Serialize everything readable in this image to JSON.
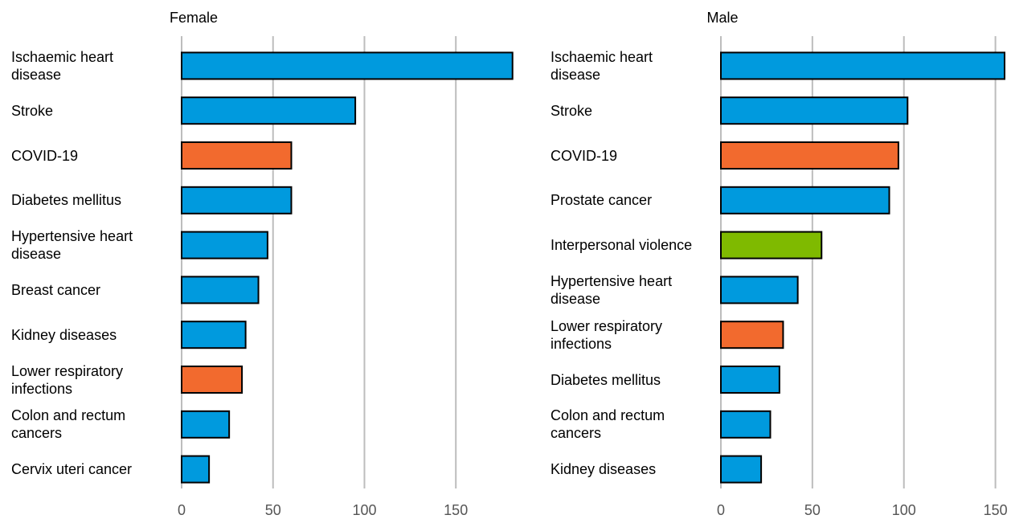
{
  "chart_data": [
    {
      "type": "bar",
      "orientation": "horizontal",
      "title": "Female",
      "categories": [
        "Ischaemic heart disease",
        "Stroke",
        "COVID-19",
        "Diabetes mellitus",
        "Hypertensive heart disease",
        "Breast cancer",
        "Kidney diseases",
        "Lower respiratory infections",
        "Colon and rectum cancers",
        "Cervix uteri cancer"
      ],
      "values": [
        181,
        95,
        60,
        60,
        47,
        42,
        35,
        33,
        26,
        15
      ],
      "colors": [
        "#009ade",
        "#009ade",
        "#f26a2e",
        "#009ade",
        "#009ade",
        "#009ade",
        "#009ade",
        "#f26a2e",
        "#009ade",
        "#009ade"
      ],
      "xlim": [
        0,
        182
      ],
      "xticks": [
        0,
        50,
        100,
        150
      ],
      "grid": true
    },
    {
      "type": "bar",
      "orientation": "horizontal",
      "title": "Male",
      "categories": [
        "Ischaemic heart disease",
        "Stroke",
        "COVID-19",
        "Prostate cancer",
        "Interpersonal violence",
        "Hypertensive heart disease",
        "Lower respiratory infections",
        "Diabetes mellitus",
        "Colon and rectum cancers",
        "Kidney diseases"
      ],
      "values": [
        155,
        102,
        97,
        92,
        55,
        42,
        34,
        32,
        27,
        22
      ],
      "colors": [
        "#009ade",
        "#009ade",
        "#f26a2e",
        "#009ade",
        "#7fba00",
        "#009ade",
        "#f26a2e",
        "#009ade",
        "#009ade",
        "#009ade"
      ],
      "xlim": [
        0,
        155
      ],
      "xticks": [
        0,
        50,
        100,
        150
      ],
      "grid": true
    }
  ]
}
